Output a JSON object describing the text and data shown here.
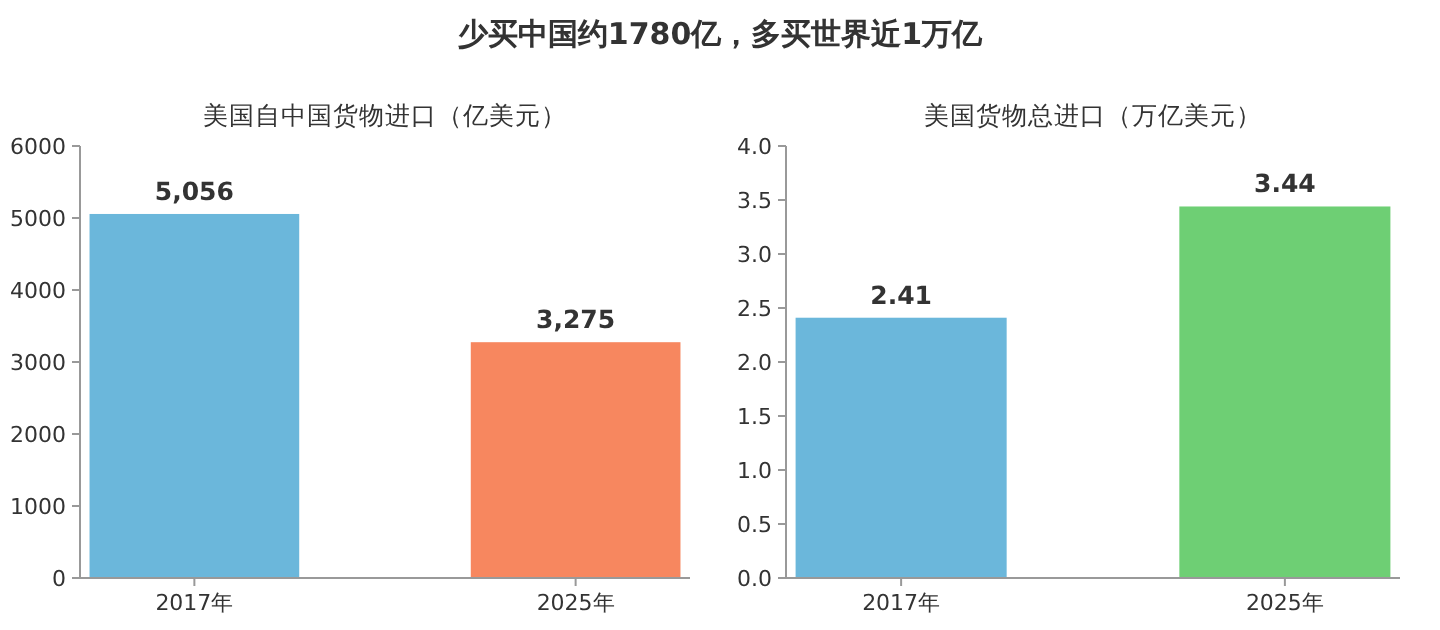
{
  "chart_data": [
    {
      "type": "bar",
      "title": "少买中国约1780亿，多买世界近1万亿",
      "subtitle": "美国自中国货物进口（亿美元）",
      "categories": [
        "2017年",
        "2025年"
      ],
      "values": [
        5056,
        3275
      ],
      "colors": [
        "#6bb7db",
        "#f7875f"
      ],
      "value_labels": [
        "5,056",
        "3,275"
      ],
      "ylim": [
        0,
        6000
      ],
      "yticks": [
        0,
        1000,
        2000,
        3000,
        4000,
        5000,
        6000
      ]
    },
    {
      "type": "bar",
      "title": "美国货物总进口（万亿美元）",
      "categories": [
        "2017年",
        "2025年"
      ],
      "values": [
        2.41,
        3.44
      ],
      "colors": [
        "#6bb7db",
        "#6ecf74"
      ],
      "data_labels": true,
      "ylim": [
        0,
        4
      ],
      "yticks": [
        {
          "value": 0,
          "label": "0.0"
        },
        0.5,
        {
          "value": 1,
          "label": "1.0"
        },
        1.5,
        {
          "value": 2,
          "label": "2.0"
        },
        2.5,
        {
          "value": 3,
          "label": "3.0"
        },
        3.5,
        {
          "value": 4,
          "label": "4.0"
        }
      ]
    }
  ]
}
